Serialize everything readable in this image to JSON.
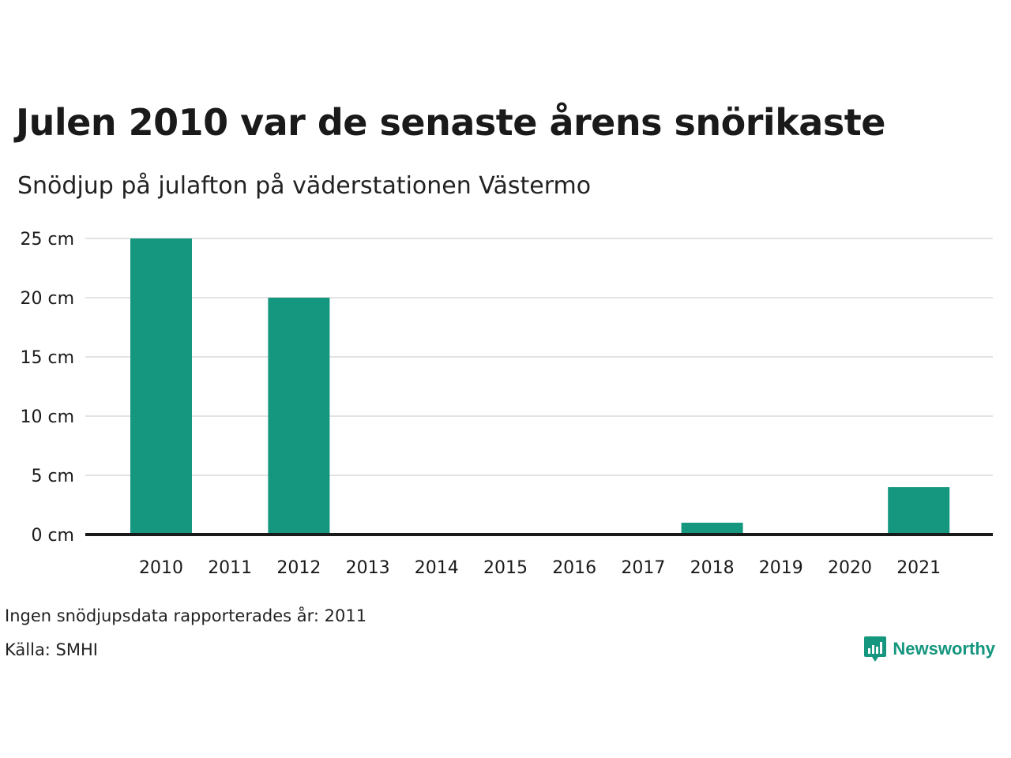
{
  "header": {
    "title": "Julen 2010 var de senaste årens snörikaste",
    "subtitle": "Snödjup på julafton på väderstationen Västermo"
  },
  "footer": {
    "note": "Ingen snödjupsdata rapporterades år: 2011",
    "source": "Källa: SMHI",
    "brand": "Newsworthy"
  },
  "colors": {
    "bar": "#15967f",
    "gridline": "#e3e3e3",
    "baseline": "#1a1a1a",
    "brand": "#15967f"
  },
  "chart_data": {
    "type": "bar",
    "title": "Julen 2010 var de senaste årens snörikaste",
    "subtitle": "Snödjup på julafton på väderstationen Västermo",
    "categories": [
      "2010",
      "2011",
      "2012",
      "2013",
      "2014",
      "2015",
      "2016",
      "2017",
      "2018",
      "2019",
      "2020",
      "2021"
    ],
    "values": [
      25,
      null,
      20,
      0,
      0,
      0,
      0,
      0,
      1,
      0,
      0,
      4
    ],
    "ylim": [
      0,
      25
    ],
    "yticks": [
      0,
      5,
      10,
      15,
      20,
      25
    ],
    "ytick_labels": [
      "0 cm",
      "5 cm",
      "10 cm",
      "15 cm",
      "20 cm",
      "25 cm"
    ],
    "xlabel": "",
    "ylabel": "",
    "grid": true,
    "legend": "none"
  }
}
